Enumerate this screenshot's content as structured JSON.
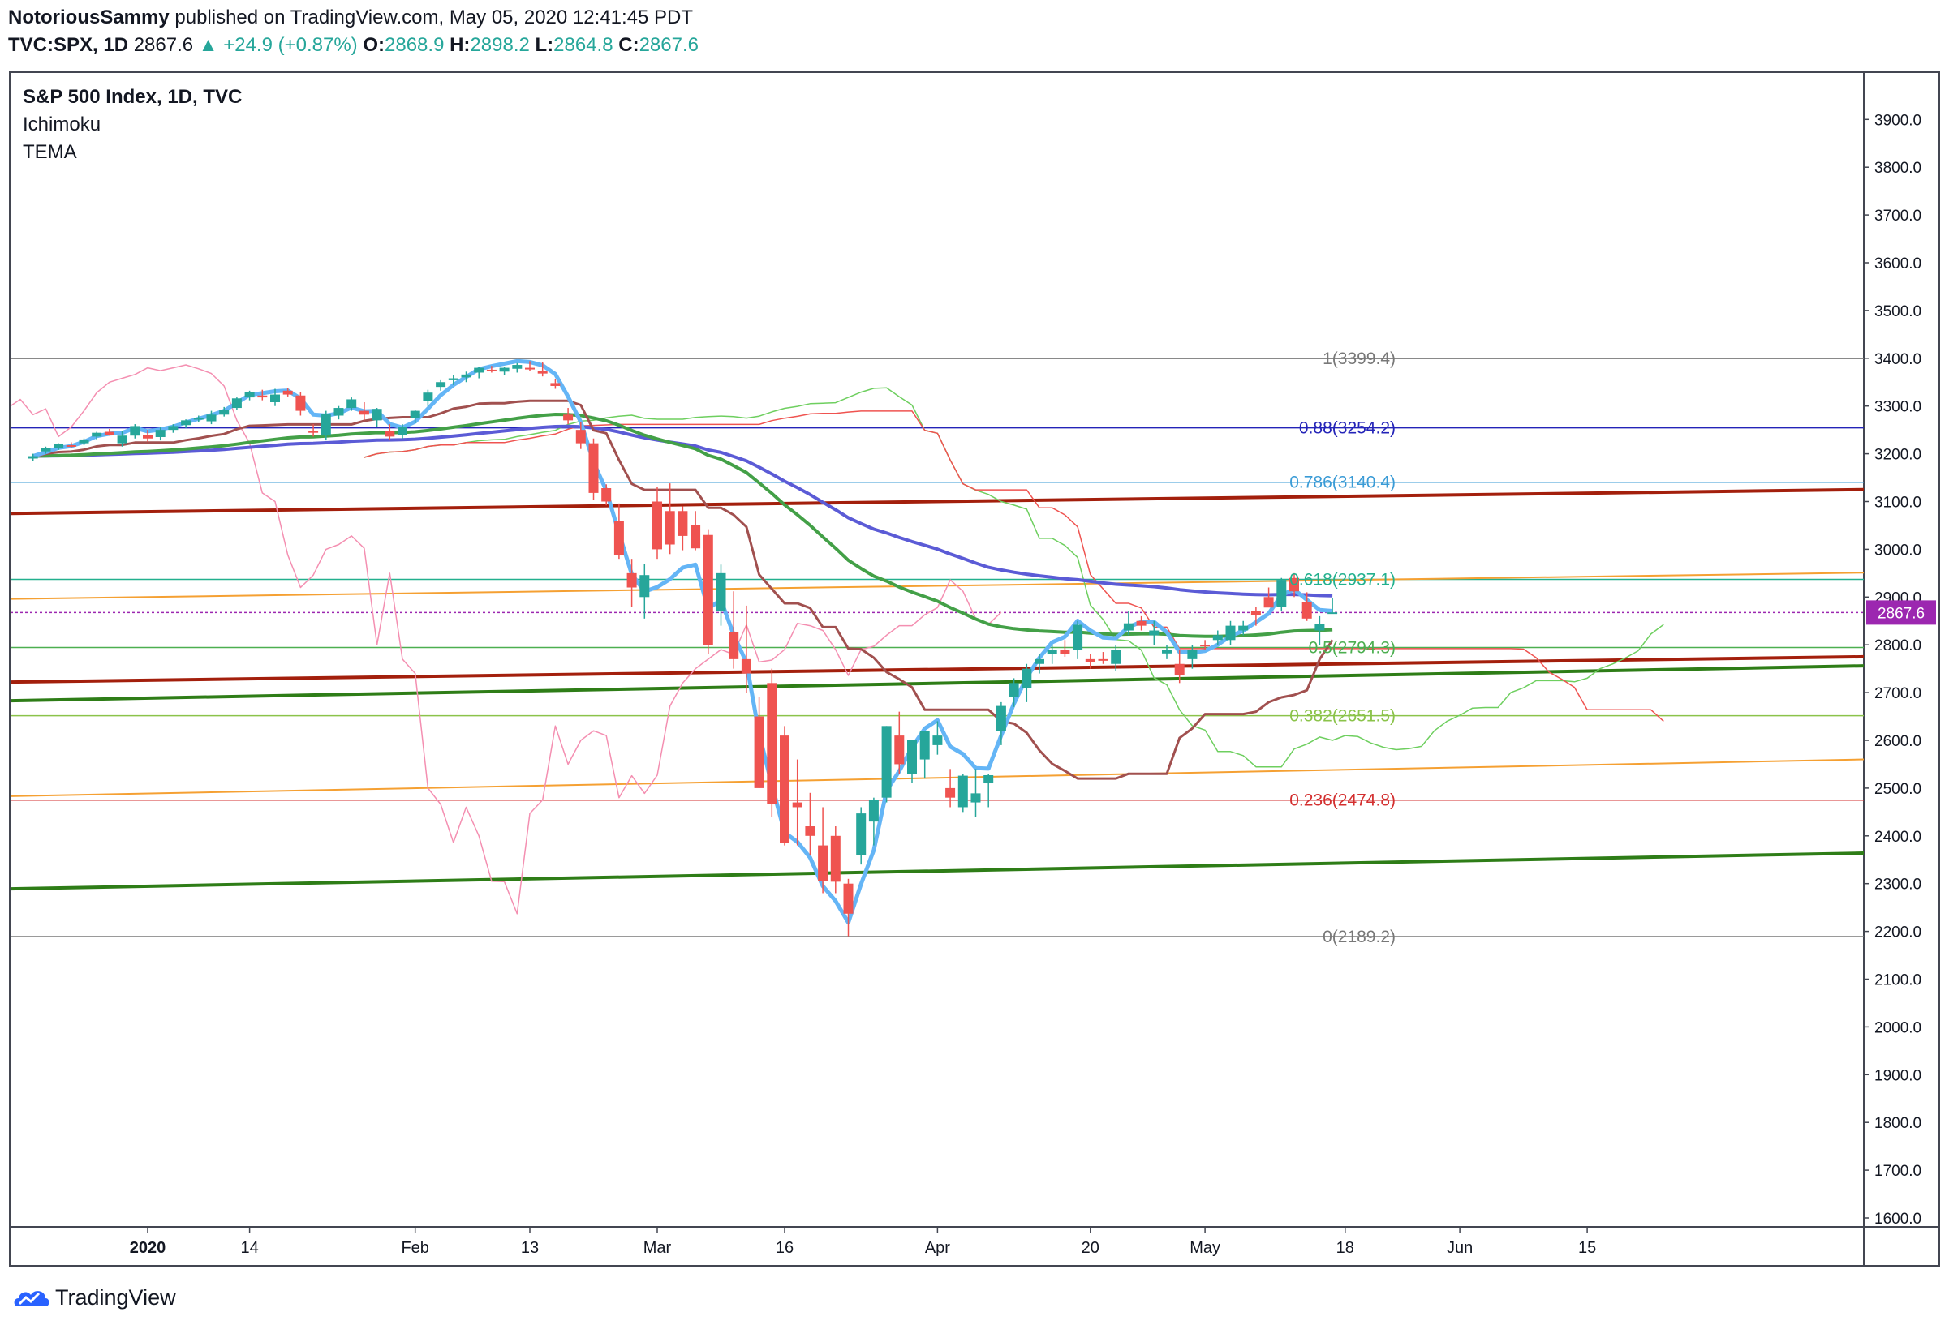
{
  "header": {
    "author": "NotoriousSammy",
    "published": "published on TradingView.com, May 05, 2020 12:41:45 PDT",
    "symbol": "TVC:SPX, 1D",
    "last": "2867.6",
    "change": "+24.9 (+0.87%)",
    "o_label": "O:",
    "o": "2868.9",
    "h_label": "H:",
    "h": "2898.2",
    "l_label": "L:",
    "l": "2864.8",
    "c_label": "C:",
    "c": "2867.6"
  },
  "legend": {
    "title": "S&P 500 Index, 1D, TVC",
    "indicator1": "Ichimoku",
    "indicator2": "TEMA"
  },
  "footer": {
    "brand": "TradingView",
    "logo_icon": "tradingview-cloud-icon"
  },
  "colors": {
    "up": "#26a69a",
    "down": "#ef5350",
    "price_tag": "#9c27b0",
    "tenkan": "#64b5f6",
    "kijun": "#a1504f",
    "span_a": "#4caf50",
    "span_b": "#ef5350",
    "lagging": "#6ecf5f",
    "tema": "#5b5bd6",
    "ma_green": "#43a047",
    "trend_red": "#a31f0c",
    "trend_green": "#2e7d17",
    "trend_orange": "#f5a032"
  },
  "chart_data": {
    "type": "candlestick",
    "title": "S&P 500 Index, 1D, TVC",
    "ylim": [
      1570,
      3990
    ],
    "y_ticks": [
      1600,
      1700,
      1800,
      1900,
      2000,
      2100,
      2200,
      2300,
      2400,
      2500,
      2600,
      2700,
      2800,
      2900,
      3000,
      3100,
      3200,
      3300,
      3400,
      3500,
      3600,
      3700,
      3800,
      3900
    ],
    "y_tick_labels": [
      "1600.0",
      "1700.0",
      "1800.0",
      "1900.0",
      "2000.0",
      "2100.0",
      "2200.0",
      "2300.0",
      "2400.0",
      "2500.0",
      "2600.0",
      "2700.0",
      "2800.0",
      "2900.0",
      "3000.0",
      "3100.0",
      "3200.0",
      "3300.0",
      "3400.0",
      "3500.0",
      "3600.0",
      "3700.0",
      "3800.0",
      "3900.0"
    ],
    "x_labels": [
      {
        "label": "2020",
        "bar": 0,
        "bold": true
      },
      {
        "label": "14",
        "bar": 8
      },
      {
        "label": "Feb",
        "bar": 21
      },
      {
        "label": "13",
        "bar": 30
      },
      {
        "label": "Mar",
        "bar": 40
      },
      {
        "label": "16",
        "bar": 50
      },
      {
        "label": "Apr",
        "bar": 62
      },
      {
        "label": "20",
        "bar": 74
      },
      {
        "label": "May",
        "bar": 83
      },
      {
        "label": "18",
        "bar": 94
      },
      {
        "label": "Jun",
        "bar": 103
      },
      {
        "label": "15",
        "bar": 113
      }
    ],
    "first_bar_offset": -9,
    "last_price": 2867.6,
    "last_price_label": "2867.6",
    "ohlc": [
      [
        3190,
        3200,
        3185,
        3195
      ],
      [
        3205,
        3215,
        3200,
        3212
      ],
      [
        3212,
        3222,
        3208,
        3220
      ],
      [
        3218,
        3224,
        3212,
        3216
      ],
      [
        3222,
        3232,
        3218,
        3230
      ],
      [
        3236,
        3246,
        3230,
        3244
      ],
      [
        3246,
        3252,
        3238,
        3240
      ],
      [
        3222,
        3248,
        3215,
        3238
      ],
      [
        3238,
        3262,
        3232,
        3258
      ],
      [
        3240,
        3250,
        3225,
        3232
      ],
      [
        3235,
        3255,
        3228,
        3250
      ],
      [
        3250,
        3262,
        3244,
        3258
      ],
      [
        3260,
        3272,
        3254,
        3270
      ],
      [
        3272,
        3280,
        3266,
        3275
      ],
      [
        3268,
        3290,
        3262,
        3282
      ],
      [
        3282,
        3298,
        3278,
        3292
      ],
      [
        3296,
        3318,
        3292,
        3316
      ],
      [
        3318,
        3332,
        3312,
        3330
      ],
      [
        3322,
        3334,
        3312,
        3318
      ],
      [
        3308,
        3336,
        3300,
        3324
      ],
      [
        3332,
        3338,
        3320,
        3324
      ],
      [
        3322,
        3330,
        3280,
        3290
      ],
      [
        3248,
        3262,
        3236,
        3244
      ],
      [
        3238,
        3290,
        3228,
        3284
      ],
      [
        3280,
        3300,
        3272,
        3296
      ],
      [
        3296,
        3318,
        3290,
        3314
      ],
      [
        3290,
        3308,
        3270,
        3282
      ],
      [
        3270,
        3296,
        3256,
        3294
      ],
      [
        3248,
        3262,
        3228,
        3236
      ],
      [
        3240,
        3262,
        3232,
        3256
      ],
      [
        3274,
        3292,
        3264,
        3290
      ],
      [
        3310,
        3334,
        3300,
        3328
      ],
      [
        3340,
        3354,
        3332,
        3350
      ],
      [
        3354,
        3364,
        3344,
        3358
      ],
      [
        3360,
        3372,
        3350,
        3366
      ],
      [
        3370,
        3382,
        3358,
        3380
      ],
      [
        3376,
        3384,
        3370,
        3374
      ],
      [
        3372,
        3382,
        3364,
        3380
      ],
      [
        3378,
        3390,
        3370,
        3386
      ],
      [
        3380,
        3394,
        3374,
        3378
      ],
      [
        3374,
        3392,
        3362,
        3368
      ],
      [
        3348,
        3356,
        3336,
        3342
      ],
      [
        3282,
        3296,
        3262,
        3270
      ],
      [
        3250,
        3266,
        3210,
        3222
      ],
      [
        3222,
        3232,
        3104,
        3118
      ],
      [
        3128,
        3136,
        3092,
        3100
      ],
      [
        3060,
        3096,
        2980,
        2988
      ],
      [
        2950,
        2980,
        2880,
        2920
      ],
      [
        2900,
        2970,
        2855,
        2946
      ],
      [
        3100,
        3130,
        2980,
        3000
      ],
      [
        3080,
        3138,
        2990,
        3010
      ],
      [
        3080,
        3090,
        2998,
        3028
      ],
      [
        3050,
        3080,
        2998,
        3002
      ],
      [
        3030,
        3042,
        2780,
        2800
      ],
      [
        2870,
        2968,
        2840,
        2950
      ],
      [
        2826,
        2912,
        2750,
        2770
      ],
      [
        2770,
        2882,
        2700,
        2740
      ],
      [
        2650,
        2690,
        2500,
        2500
      ],
      [
        2720,
        2750,
        2440,
        2466
      ],
      [
        2610,
        2630,
        2380,
        2386
      ],
      [
        2470,
        2560,
        2380,
        2460
      ],
      [
        2420,
        2490,
        2360,
        2400
      ],
      [
        2380,
        2460,
        2280,
        2305
      ],
      [
        2400,
        2420,
        2280,
        2304
      ],
      [
        2300,
        2310,
        2190,
        2237
      ],
      [
        2360,
        2460,
        2340,
        2447
      ],
      [
        2430,
        2480,
        2380,
        2475
      ],
      [
        2480,
        2630,
        2470,
        2630
      ],
      [
        2610,
        2660,
        2530,
        2550
      ],
      [
        2530,
        2600,
        2510,
        2600
      ],
      [
        2560,
        2620,
        2520,
        2620
      ],
      [
        2590,
        2640,
        2570,
        2610
      ],
      [
        2500,
        2540,
        2460,
        2480
      ],
      [
        2460,
        2530,
        2450,
        2526
      ],
      [
        2470,
        2540,
        2440,
        2489
      ],
      [
        2510,
        2530,
        2460,
        2527
      ],
      [
        2620,
        2680,
        2590,
        2672
      ],
      [
        2690,
        2730,
        2670,
        2720
      ],
      [
        2710,
        2760,
        2680,
        2750
      ],
      [
        2760,
        2780,
        2740,
        2770
      ],
      [
        2780,
        2800,
        2760,
        2790
      ],
      [
        2790,
        2810,
        2775,
        2780
      ],
      [
        2790,
        2850,
        2770,
        2842
      ],
      [
        2770,
        2780,
        2750,
        2764
      ],
      [
        2770,
        2785,
        2760,
        2768
      ],
      [
        2760,
        2800,
        2745,
        2790
      ],
      [
        2830,
        2870,
        2820,
        2845
      ],
      [
        2850,
        2860,
        2830,
        2840
      ],
      [
        2820,
        2850,
        2800,
        2830
      ],
      [
        2782,
        2800,
        2770,
        2790
      ],
      [
        2760,
        2790,
        2720,
        2736
      ],
      [
        2770,
        2800,
        2750,
        2790
      ],
      [
        2800,
        2810,
        2790,
        2797
      ],
      [
        2810,
        2830,
        2800,
        2820
      ],
      [
        2810,
        2850,
        2800,
        2840
      ],
      [
        2830,
        2850,
        2820,
        2840
      ],
      [
        2870,
        2880,
        2840,
        2863
      ],
      [
        2900,
        2920,
        2880,
        2878
      ],
      [
        2880,
        2940,
        2870,
        2936
      ],
      [
        2940,
        2950,
        2900,
        2912
      ],
      [
        2890,
        2910,
        2850,
        2855
      ],
      [
        2830,
        2860,
        2800,
        2843
      ],
      [
        2868,
        2898,
        2865,
        2868
      ]
    ],
    "fib_levels": [
      {
        "label": "1(3399.4)",
        "value": 3399.4,
        "color": "#787878"
      },
      {
        "label": "0.88(3254.2)",
        "value": 3254.2,
        "color": "#2424b8"
      },
      {
        "label": "0.786(3140.4)",
        "value": 3140.4,
        "color": "#3a9bd6"
      },
      {
        "label": "0.618(2937.1)",
        "value": 2937.1,
        "color": "#22b08e"
      },
      {
        "label": "0.5(2794.3)",
        "value": 2794.3,
        "color": "#4caf50"
      },
      {
        "label": "0.382(2651.5)",
        "value": 2651.5,
        "color": "#8bc34a"
      },
      {
        "label": "0.236(2474.8)",
        "value": 2474.8,
        "color": "#d32f2f"
      },
      {
        "label": "0(2189.2)",
        "value": 2189.2,
        "color": "#787878"
      }
    ],
    "trendlines": [
      {
        "name": "red-upper",
        "y_start": 3075,
        "y_end": 3125,
        "color": "#a31f0c",
        "width": 4
      },
      {
        "name": "red-lower",
        "y_start": 2722,
        "y_end": 2775,
        "color": "#a31f0c",
        "width": 4
      },
      {
        "name": "green-upper",
        "y_start": 2683,
        "y_end": 2756,
        "color": "#2e7d17",
        "width": 4
      },
      {
        "name": "green-lower",
        "y_start": 2289,
        "y_end": 2364,
        "color": "#2e7d17",
        "width": 4
      },
      {
        "name": "orange-upper",
        "y_start": 2896,
        "y_end": 2951,
        "color": "#f5a032",
        "width": 2
      },
      {
        "name": "orange-lower",
        "y_start": 2483,
        "y_end": 2560,
        "color": "#f5a032",
        "width": 2
      }
    ]
  }
}
